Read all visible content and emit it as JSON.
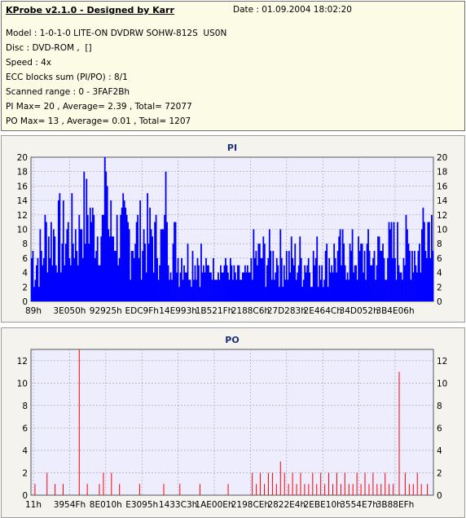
{
  "info": {
    "app_title": "KProbe v2.1.0 - Designed by Karr",
    "date": "Date : 01.09.2004 18:02:20",
    "model": "Model : 1-0-1-0 LITE-ON DVDRW SOHW-812S  US0N",
    "disc": "Disc : DVD-ROM ,  []",
    "speed": "Speed : 4x",
    "ecc": "ECC blocks sum (PI/PO) : 8/1",
    "range": "Scanned range : 0 - 3FAF2Bh",
    "pi_stats": "PI Max= 20 , Average= 2.39 , Total= 72077",
    "po_stats": "PO Max= 13 , Average= 0.01 , Total= 1207"
  },
  "colors": {
    "pi": "#0000ff",
    "po": "#ff0000",
    "plot_bg": "#ededfd",
    "grid": "#9b9bb8"
  },
  "chart_data": [
    {
      "type": "bar",
      "title": "PI",
      "ylim": [
        0,
        20
      ],
      "yticks": [
        0,
        2,
        4,
        6,
        8,
        10,
        12,
        14,
        16,
        18,
        20
      ],
      "xticks": [
        "89h",
        "3E050h",
        "92925h",
        "EDC9Fh",
        "14E993h",
        "1B521Fh",
        "2188C6h",
        "27D283h",
        "2E464Ch",
        "34D052h",
        "3B4E06h"
      ],
      "grid": true,
      "segments": [
        {
          "n": 10,
          "base": 6,
          "var": 5
        },
        {
          "n": 30,
          "base": 9,
          "var": 6
        },
        {
          "n": 10,
          "base": 12,
          "var": 7
        },
        {
          "n": 20,
          "base": 10,
          "var": 6
        },
        {
          "n": 30,
          "base": 9,
          "var": 6
        },
        {
          "n": 20,
          "base": 8,
          "var": 5
        },
        {
          "n": 20,
          "base": 6,
          "var": 4
        },
        {
          "n": 25,
          "base": 4.5,
          "var": 2
        },
        {
          "n": 15,
          "base": 3.5,
          "var": 1.5
        },
        {
          "n": 25,
          "base": 6,
          "var": 4
        },
        {
          "n": 40,
          "base": 5.5,
          "var": 4
        },
        {
          "n": 40,
          "base": 6,
          "var": 4
        },
        {
          "n": 35,
          "base": 7,
          "var": 5
        },
        {
          "n": 10,
          "base": 11,
          "var": 5
        }
      ],
      "peaks": [
        {
          "i": 60,
          "v": 20
        },
        {
          "i": 61,
          "v": 18
        },
        {
          "i": 62,
          "v": 16
        },
        {
          "i": 110,
          "v": 18
        },
        {
          "i": 95,
          "v": 15
        },
        {
          "i": 320,
          "v": 10
        },
        {
          "i": 480,
          "v": 15
        },
        {
          "i": 482,
          "v": 13
        }
      ]
    },
    {
      "type": "bar",
      "title": "PO",
      "ylim": [
        0,
        13
      ],
      "yticks": [
        0,
        2,
        4,
        6,
        8,
        10,
        12
      ],
      "xticks": [
        "11h",
        "3954Fh",
        "8E010h",
        "E3095h",
        "1433C3h",
        "1AE00Eh",
        "2198CEh",
        "2822E4h",
        "2EBE10h",
        "3554E7h",
        "3B88EFh"
      ],
      "grid": true,
      "points": [
        {
          "i": 0.01,
          "v": 1
        },
        {
          "i": 0.04,
          "v": 2
        },
        {
          "i": 0.06,
          "v": 1
        },
        {
          "i": 0.08,
          "v": 1
        },
        {
          "i": 0.12,
          "v": 13
        },
        {
          "i": 0.14,
          "v": 1
        },
        {
          "i": 0.17,
          "v": 1
        },
        {
          "i": 0.18,
          "v": 2
        },
        {
          "i": 0.2,
          "v": 2
        },
        {
          "i": 0.22,
          "v": 1
        },
        {
          "i": 0.27,
          "v": 1
        },
        {
          "i": 0.33,
          "v": 1
        },
        {
          "i": 0.37,
          "v": 1
        },
        {
          "i": 0.42,
          "v": 1
        },
        {
          "i": 0.49,
          "v": 1
        },
        {
          "i": 0.55,
          "v": 2
        },
        {
          "i": 0.56,
          "v": 1
        },
        {
          "i": 0.57,
          "v": 2
        },
        {
          "i": 0.58,
          "v": 1
        },
        {
          "i": 0.59,
          "v": 2
        },
        {
          "i": 0.6,
          "v": 2
        },
        {
          "i": 0.61,
          "v": 1
        },
        {
          "i": 0.62,
          "v": 3
        },
        {
          "i": 0.63,
          "v": 2
        },
        {
          "i": 0.64,
          "v": 1
        },
        {
          "i": 0.65,
          "v": 2
        },
        {
          "i": 0.66,
          "v": 1
        },
        {
          "i": 0.67,
          "v": 2
        },
        {
          "i": 0.68,
          "v": 1
        },
        {
          "i": 0.69,
          "v": 1
        },
        {
          "i": 0.7,
          "v": 2
        },
        {
          "i": 0.71,
          "v": 1
        },
        {
          "i": 0.72,
          "v": 2
        },
        {
          "i": 0.73,
          "v": 1
        },
        {
          "i": 0.74,
          "v": 2
        },
        {
          "i": 0.75,
          "v": 1
        },
        {
          "i": 0.76,
          "v": 2
        },
        {
          "i": 0.77,
          "v": 1
        },
        {
          "i": 0.78,
          "v": 2
        },
        {
          "i": 0.79,
          "v": 1
        },
        {
          "i": 0.8,
          "v": 1
        },
        {
          "i": 0.81,
          "v": 2
        },
        {
          "i": 0.82,
          "v": 1
        },
        {
          "i": 0.83,
          "v": 2
        },
        {
          "i": 0.84,
          "v": 1
        },
        {
          "i": 0.85,
          "v": 2
        },
        {
          "i": 0.86,
          "v": 1
        },
        {
          "i": 0.87,
          "v": 1
        },
        {
          "i": 0.88,
          "v": 2
        },
        {
          "i": 0.89,
          "v": 1
        },
        {
          "i": 0.9,
          "v": 1
        },
        {
          "i": 0.915,
          "v": 11
        },
        {
          "i": 0.93,
          "v": 2
        },
        {
          "i": 0.94,
          "v": 1
        },
        {
          "i": 0.95,
          "v": 1
        },
        {
          "i": 0.96,
          "v": 2
        },
        {
          "i": 0.97,
          "v": 1
        },
        {
          "i": 0.985,
          "v": 1
        }
      ]
    }
  ]
}
